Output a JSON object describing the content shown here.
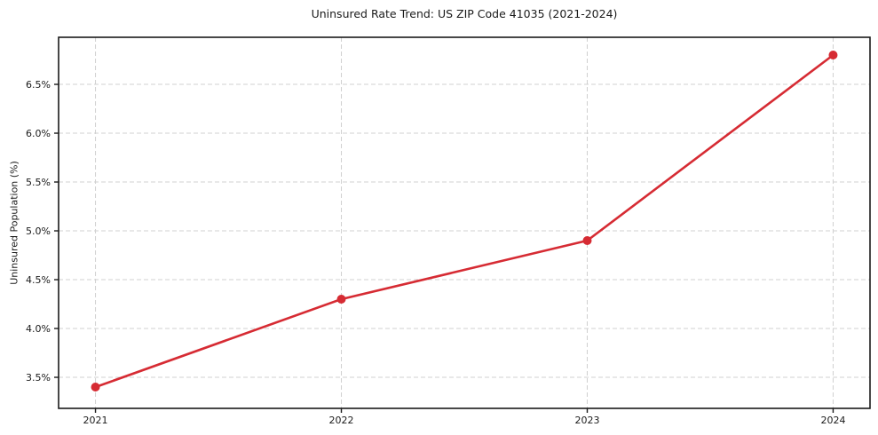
{
  "figure": {
    "background": "#ffffff"
  },
  "chart_data": {
    "type": "line",
    "title": "Uninsured Rate Trend: US ZIP Code 41035 (2021-2024)",
    "xlabel": "",
    "ylabel": "Uninsured Population (%)",
    "x": [
      2021,
      2022,
      2023,
      2024
    ],
    "values": [
      3.4,
      4.3,
      4.9,
      6.8
    ],
    "x_tick_labels": [
      "2021",
      "2022",
      "2023",
      "2024"
    ],
    "y_ticks": [
      3.5,
      4.0,
      4.5,
      5.0,
      5.5,
      6.0,
      6.5
    ],
    "y_tick_suffix": "%",
    "xlim": [
      2020.85,
      2024.15
    ],
    "ylim": [
      3.182,
      6.982
    ],
    "grid": true,
    "legend": false,
    "line_color": "#d62b33",
    "marker": "circle",
    "marker_radius": 5,
    "line_width": 2.6,
    "grid_color": "#d0d0d0",
    "spine_color": "#1a1a1a",
    "text_color": "#1a1a1a"
  }
}
